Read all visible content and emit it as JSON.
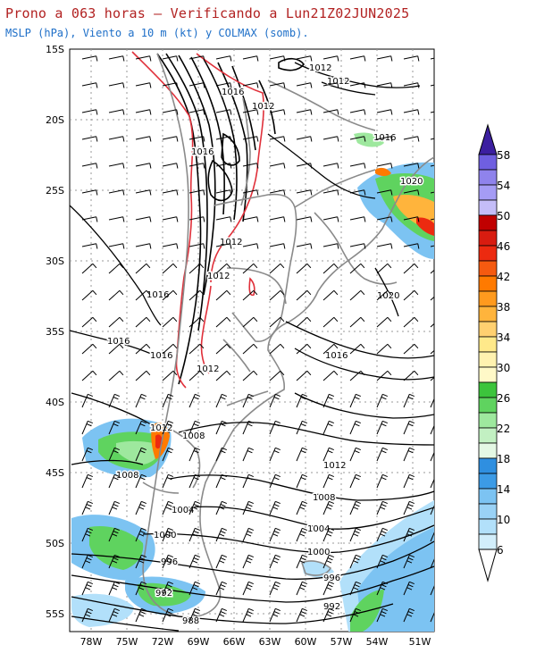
{
  "header": {
    "title": "Prono a 063 horas – Verificando a Lun21Z02JUN2025",
    "subtitle": "MSLP (hPa), Viento a 10 m (kt) y COLMAX (somb)."
  },
  "map": {
    "lat_labels": [
      "15S",
      "20S",
      "25S",
      "30S",
      "35S",
      "40S",
      "45S",
      "50S",
      "55S"
    ],
    "lon_labels": [
      "78W",
      "75W",
      "72W",
      "69W",
      "66W",
      "63W",
      "60W",
      "57W",
      "54W",
      "51W"
    ],
    "isobar_labels": [
      "1012",
      "1012",
      "1016",
      "1012",
      "1016",
      "1016",
      "1020",
      "1012",
      "1012",
      "1016",
      "1020",
      "1016",
      "1016",
      "1016",
      "1012",
      "1012",
      "1008",
      "1008",
      "1012",
      "1004",
      "1008",
      "1000",
      "1004",
      "996",
      "1000",
      "992",
      "996",
      "988",
      "992"
    ]
  },
  "colorbar": {
    "labels": [
      "58",
      "54",
      "50",
      "46",
      "42",
      "38",
      "34",
      "30",
      "26",
      "22",
      "18",
      "14",
      "10",
      "6"
    ],
    "colors": [
      "#3c1fa0",
      "#6f5fe0",
      "#a59cf5",
      "#c00000",
      "#ec2a10",
      "#ff7a00",
      "#ffb43c",
      "#ffe98a",
      "#fff9c8",
      "#5fd35f",
      "#9ee89e",
      "#d6f5d6",
      "#3c9be6",
      "#7cc3f2",
      "#b2e0fa",
      "#e2f7fd"
    ]
  }
}
